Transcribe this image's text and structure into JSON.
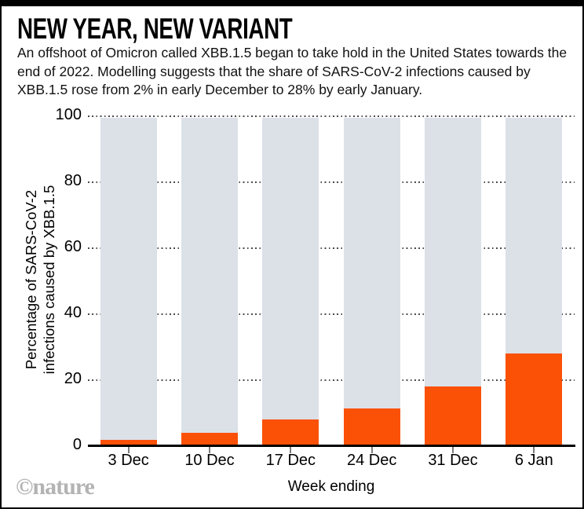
{
  "header": {
    "title": "NEW YEAR, NEW VARIANT",
    "subtitle": "An offshoot of Omicron called XBB.1.5 began to take hold in the United States towards the end of 2022. Modelling suggests that the share of SARS-CoV-2 infections caused by XBB.1.5 rose from 2% in early December to 28% by early January."
  },
  "chart_data": {
    "type": "bar",
    "title": "NEW YEAR, NEW VARIANT",
    "categories": [
      "3 Dec",
      "10 Dec",
      "17 Dec",
      "24 Dec",
      "31 Dec",
      "6 Jan"
    ],
    "values": [
      2,
      4,
      8,
      11.5,
      18,
      28
    ],
    "background_bar_value": 100,
    "xlabel": "Week ending",
    "ylabel_line1": "Percentage of SARS-CoV-2",
    "ylabel_line2": "infections caused by XBB.1.5",
    "ylim": [
      0,
      100
    ],
    "yticks": [
      0,
      20,
      40,
      60,
      80,
      100
    ],
    "grid": "horizontal-dotted",
    "legend": "none",
    "bar_color": "#fa5106",
    "background_bar_color": "#dce1e8"
  },
  "footer": {
    "credit": "©nature"
  }
}
